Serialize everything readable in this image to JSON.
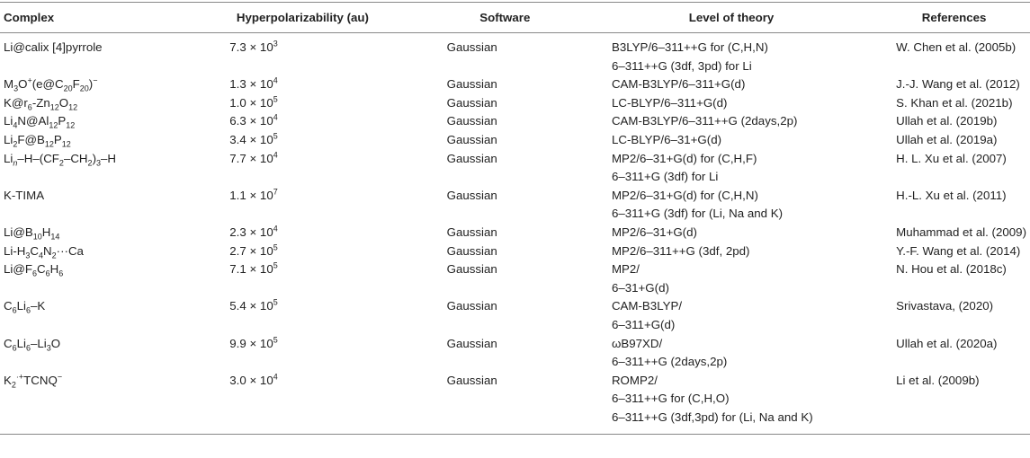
{
  "table": {
    "header": [
      "Complex",
      "Hyperpolarizability (au)",
      "Software",
      "Level of theory",
      "References"
    ],
    "rows": [
      [
        [
          [
            "Li@calix [4]pyrrole"
          ]
        ],
        [
          [
            "7.3 × 10",
            {
              "sup": "3"
            }
          ]
        ],
        [
          [
            "Gaussian"
          ]
        ],
        [
          [
            "B3LYP/6–311++G for (C,H,N)"
          ],
          [
            "6–311++G (3df, 3pd) for Li"
          ]
        ],
        [
          [
            "W. Chen et al. (2005b)"
          ]
        ]
      ],
      [
        [
          [
            "M",
            {
              "sub": "3"
            },
            "O",
            {
              "sup": "+"
            },
            "(e@C",
            {
              "sub": "20"
            },
            "F",
            {
              "sub": "20"
            },
            ")",
            {
              "sup": "−"
            }
          ]
        ],
        [
          [
            "1.3 × 10",
            {
              "sup": "4"
            }
          ]
        ],
        [
          [
            "Gaussian"
          ]
        ],
        [
          [
            "CAM-B3LYP/6–311+G(d)"
          ]
        ],
        [
          [
            "J.-J. Wang et al. (2012)"
          ]
        ]
      ],
      [
        [
          [
            "K@r",
            {
              "sub": "6"
            },
            "-Zn",
            {
              "sub": "12"
            },
            "O",
            {
              "sub": "12"
            }
          ]
        ],
        [
          [
            "1.0 × 10",
            {
              "sup": "5"
            }
          ]
        ],
        [
          [
            "Gaussian"
          ]
        ],
        [
          [
            "LC-BLYP/6–311+G(d)"
          ]
        ],
        [
          [
            "S. Khan et al. (2021b)"
          ]
        ]
      ],
      [
        [
          [
            "Li",
            {
              "sub": "4"
            },
            "N@Al",
            {
              "sub": "12"
            },
            "P",
            {
              "sub": "12"
            }
          ]
        ],
        [
          [
            "6.3 × 10",
            {
              "sup": "4"
            }
          ]
        ],
        [
          [
            "Gaussian"
          ]
        ],
        [
          [
            "CAM-B3LYP/6–311++G (2days,2p)"
          ]
        ],
        [
          [
            "Ullah et al. (2019b)"
          ]
        ]
      ],
      [
        [
          [
            "Li",
            {
              "sub": "2"
            },
            "F@B",
            {
              "sub": "12"
            },
            "P",
            {
              "sub": "12"
            }
          ]
        ],
        [
          [
            "3.4 × 10",
            {
              "sup": "5"
            }
          ]
        ],
        [
          [
            "Gaussian"
          ]
        ],
        [
          [
            "LC-BLYP/6–31+G(d)"
          ]
        ],
        [
          [
            "Ullah et al. (2019a)"
          ]
        ]
      ],
      [
        [
          [
            "Li",
            {
              "sub": "n"
            },
            "–H–(CF",
            {
              "sub": "2"
            },
            "–CH",
            {
              "sub": "2"
            },
            ")",
            {
              "sub": "3"
            },
            "–H"
          ]
        ],
        [
          [
            "7.7 × 10",
            {
              "sup": "4"
            }
          ]
        ],
        [
          [
            "Gaussian"
          ]
        ],
        [
          [
            "MP2/6–31+G(d) for (C,H,F)"
          ],
          [
            "6–311+G (3df) for Li"
          ]
        ],
        [
          [
            "H. L. Xu et al. (2007)"
          ]
        ]
      ],
      [
        [
          [
            "K-TIMA"
          ]
        ],
        [
          [
            "1.1 × 10",
            {
              "sup": "7"
            }
          ]
        ],
        [
          [
            "Gaussian"
          ]
        ],
        [
          [
            "MP2/6–31+G(d) for (C,H,N)"
          ],
          [
            "6–311+G (3df) for (Li, Na and K)"
          ]
        ],
        [
          [
            "H.-L. Xu et al. (2011)"
          ]
        ]
      ],
      [
        [
          [
            "Li@B",
            {
              "sub": "10"
            },
            "H",
            {
              "sub": "14"
            }
          ]
        ],
        [
          [
            "2.3 × 10",
            {
              "sup": "4"
            }
          ]
        ],
        [
          [
            "Gaussian"
          ]
        ],
        [
          [
            "MP2/6–31+G(d)"
          ]
        ],
        [
          [
            "Muhammad et al. (2009)"
          ]
        ]
      ],
      [
        [
          [
            "Li-H",
            {
              "sub": "3"
            },
            "C",
            {
              "sub": "4"
            },
            "N",
            {
              "sub": "2"
            },
            "···Ca"
          ]
        ],
        [
          [
            "2.7 × 10",
            {
              "sup": "5"
            }
          ]
        ],
        [
          [
            "Gaussian"
          ]
        ],
        [
          [
            "MP2/6–311++G (3df, 2pd)"
          ]
        ],
        [
          [
            "Y.-F. Wang et al. (2014)"
          ]
        ]
      ],
      [
        [
          [
            "Li@F",
            {
              "sub": "6"
            },
            "C",
            {
              "sub": "6"
            },
            "H",
            {
              "sub": "6"
            }
          ]
        ],
        [
          [
            "7.1 × 10",
            {
              "sup": "5"
            }
          ]
        ],
        [
          [
            "Gaussian"
          ]
        ],
        [
          [
            "MP2/"
          ],
          [
            "6–31+G(d)"
          ]
        ],
        [
          [
            "N. Hou et al. (2018c)"
          ]
        ]
      ],
      [
        [
          [
            "C",
            {
              "sub": "6"
            },
            "Li",
            {
              "sub": "6"
            },
            "–K"
          ]
        ],
        [
          [
            "5.4 × 10",
            {
              "sup": "5"
            }
          ]
        ],
        [
          [
            "Gaussian"
          ]
        ],
        [
          [
            "CAM-B3LYP/"
          ],
          [
            "6–311+G(d)"
          ]
        ],
        [
          [
            "Srivastava, (2020)"
          ]
        ]
      ],
      [
        [
          [
            "C",
            {
              "sub": "6"
            },
            "Li",
            {
              "sub": "6"
            },
            "–Li",
            {
              "sub": "3"
            },
            "O"
          ]
        ],
        [
          [
            "9.9 × 10",
            {
              "sup": "5"
            }
          ]
        ],
        [
          [
            "Gaussian"
          ]
        ],
        [
          [
            "ωB97XD/"
          ],
          [
            "6–311++G (2days,2p)"
          ]
        ],
        [
          [
            "Ullah et al. (2020a)"
          ]
        ]
      ],
      [
        [
          [
            "K",
            {
              "sub": "2"
            },
            {
              "sup": "·+"
            },
            "TCNQ",
            {
              "sup": "−"
            }
          ]
        ],
        [
          [
            "3.0 × 10",
            {
              "sup": "4"
            }
          ]
        ],
        [
          [
            "Gaussian"
          ]
        ],
        [
          [
            "ROMP2/"
          ],
          [
            "6–311++G for (C,H,O)"
          ],
          [
            "6–311++G (3df,3pd) for (Li, Na and K)"
          ]
        ],
        [
          [
            "Li et al. (2009b)"
          ]
        ]
      ]
    ]
  }
}
